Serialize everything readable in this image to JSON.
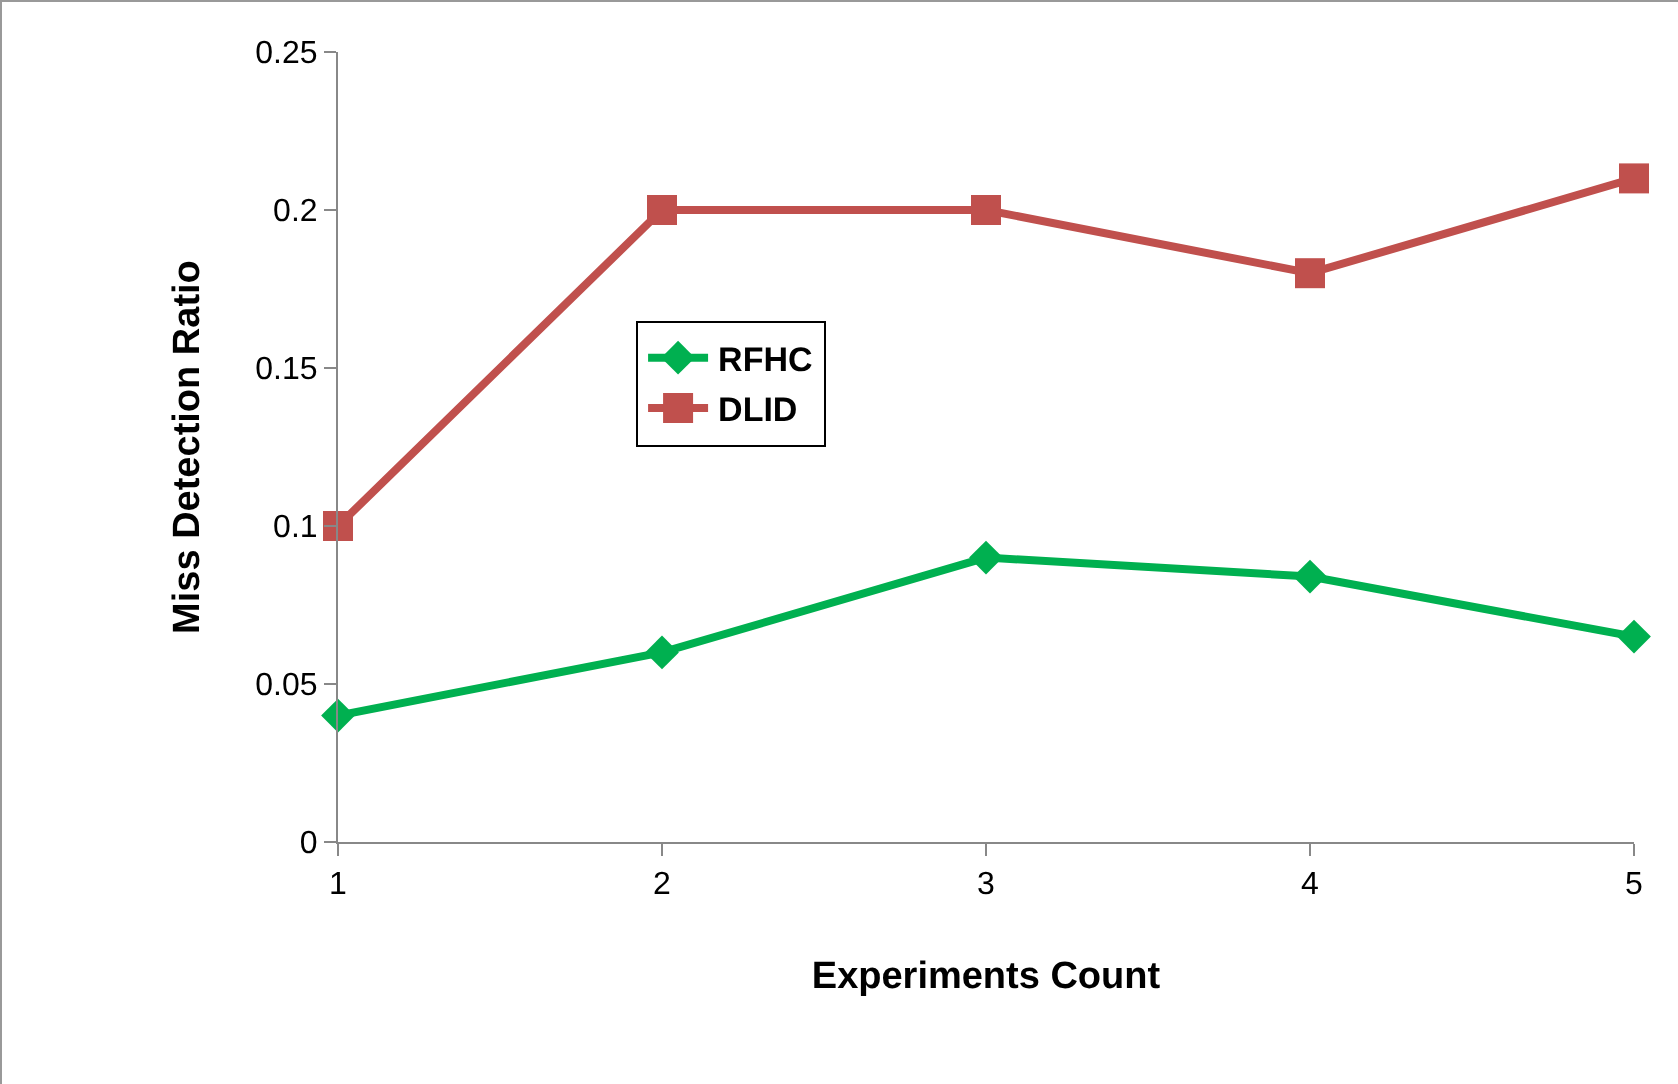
{
  "chart_data": {
    "type": "line",
    "xlabel": "Experiments Count",
    "ylabel": "Miss Detection Ratio",
    "x": [
      1,
      2,
      3,
      4,
      5
    ],
    "xlim": [
      1,
      5
    ],
    "xticks": [
      1,
      2,
      3,
      4,
      5
    ],
    "ylim": [
      0,
      0.25
    ],
    "yticks": [
      0,
      0.05,
      0.1,
      0.15,
      0.2,
      0.25
    ],
    "grid": false,
    "legend": "top left",
    "line_style": "solid",
    "series": [
      {
        "name": "RFHC",
        "color": "#00b050",
        "marker": "diamond",
        "values": [
          0.04,
          0.06,
          0.09,
          0.084,
          0.065
        ]
      },
      {
        "name": "DLID",
        "color": "#c0504d",
        "marker": "square",
        "values": [
          0.1,
          0.2,
          0.2,
          0.18,
          0.21
        ]
      }
    ]
  }
}
